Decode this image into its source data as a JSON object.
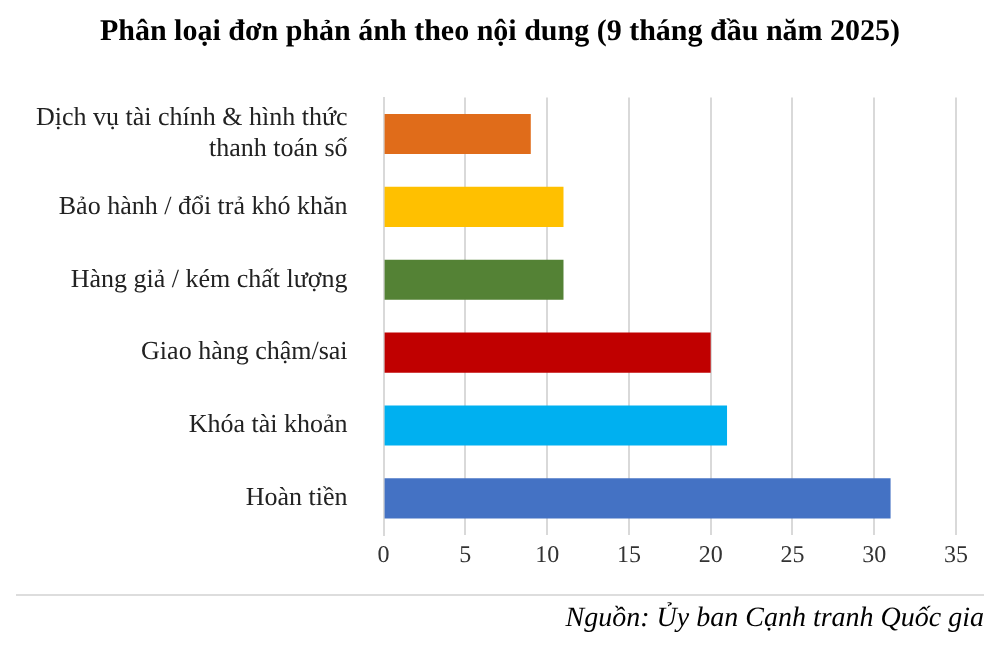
{
  "chart_data": {
    "type": "bar",
    "orientation": "horizontal",
    "title": "Phân loại đơn phản ánh theo nội dung (9 tháng đầu năm 2025)",
    "categories": [
      "Dịch vụ tài chính & hình thức thanh toán số",
      "Bảo hành / đổi trả khó khăn",
      "Hàng giả / kém chất lượng",
      "Giao hàng chậm/sai",
      "Khóa tài khoản",
      "Hoàn tiền"
    ],
    "values": [
      9,
      11,
      11,
      20,
      21,
      31
    ],
    "colors": [
      "#e06c1a",
      "#ffc000",
      "#548235",
      "#c00000",
      "#00b0f0",
      "#4472c4"
    ],
    "xlim": [
      0,
      35
    ],
    "xticks": [
      0,
      5,
      10,
      15,
      20,
      25,
      30,
      35
    ],
    "grid": "x",
    "legend": false,
    "annotations": [
      "Nguồn: Ủy ban Cạnh tranh Quốc gia"
    ]
  }
}
